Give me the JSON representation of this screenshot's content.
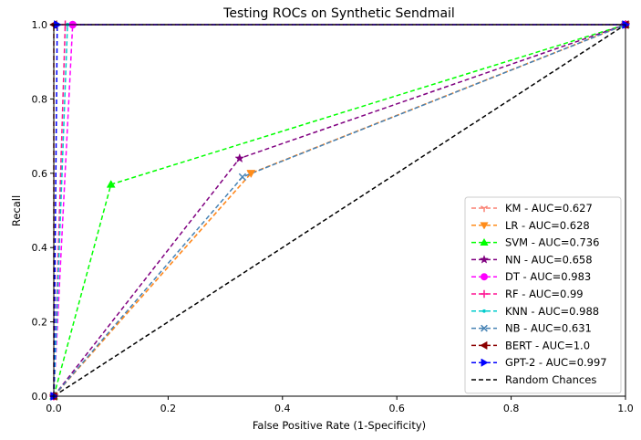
{
  "chart_data": {
    "type": "line",
    "title": "Testing ROCs on Synthetic Sendmail",
    "xlabel": "False Positive Rate (1-Specificity)",
    "ylabel": "Recall",
    "xlim": [
      0,
      1
    ],
    "ylim": [
      0,
      1
    ],
    "xticks": [
      "0.0",
      "0.2",
      "0.4",
      "0.6",
      "0.8",
      "1.0"
    ],
    "yticks": [
      "0.0",
      "0.2",
      "0.4",
      "0.6",
      "0.8",
      "1.0"
    ],
    "grid": false,
    "legend_position": "lower-right",
    "series": [
      {
        "name": "KM - AUC=0.627",
        "color": "#fa8072",
        "marker": "tri_down",
        "x": [
          0,
          0.345,
          1
        ],
        "y": [
          0,
          0.6,
          1
        ]
      },
      {
        "name": "LR - AUC=0.628",
        "color": "#ff8c1a",
        "marker": "triangle_down",
        "x": [
          0,
          0.345,
          1
        ],
        "y": [
          0,
          0.6,
          1
        ]
      },
      {
        "name": "SVM - AUC=0.736",
        "color": "#00ff00",
        "marker": "triangle_up",
        "x": [
          0,
          0.1,
          1
        ],
        "y": [
          0,
          0.57,
          1
        ]
      },
      {
        "name": "NN - AUC=0.658",
        "color": "#800080",
        "marker": "star",
        "x": [
          0,
          0.325,
          1
        ],
        "y": [
          0,
          0.64,
          1
        ]
      },
      {
        "name": "DT - AUC=0.983",
        "color": "#ff00ff",
        "marker": "circle",
        "x": [
          0,
          0.033,
          1
        ],
        "y": [
          0,
          1.0,
          1
        ]
      },
      {
        "name": "RF - AUC=0.99",
        "color": "#ff1493",
        "marker": "plus",
        "x": [
          0,
          0.02,
          1
        ],
        "y": [
          0,
          1.0,
          1
        ]
      },
      {
        "name": "KNN - AUC=0.988",
        "color": "#00cccc",
        "marker": "point",
        "x": [
          0,
          0.024,
          1
        ],
        "y": [
          0,
          1.0,
          1
        ]
      },
      {
        "name": "NB - AUC=0.631",
        "color": "#4682b4",
        "marker": "x",
        "x": [
          0,
          0.33,
          1
        ],
        "y": [
          0,
          0.59,
          1
        ]
      },
      {
        "name": "BERT - AUC=1.0",
        "color": "#8b0000",
        "marker": "triangle_left",
        "x": [
          0,
          0,
          1
        ],
        "y": [
          0,
          1.0,
          1
        ]
      },
      {
        "name": "GPT-2 - AUC=0.997",
        "color": "#0000ff",
        "marker": "triangle_right",
        "x": [
          0,
          0.006,
          1
        ],
        "y": [
          0,
          1.0,
          1
        ]
      },
      {
        "name": "Random Chances",
        "color": "#000000",
        "marker": "none",
        "x": [
          0,
          1
        ],
        "y": [
          0,
          1
        ]
      }
    ]
  }
}
